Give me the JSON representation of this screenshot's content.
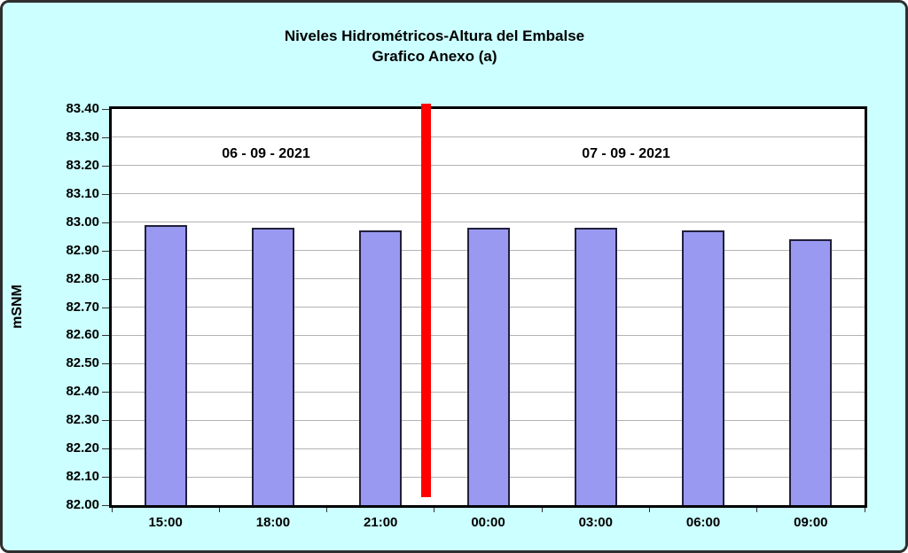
{
  "title": {
    "line1": "Niveles Hidrométricos-Altura del Embalse",
    "line2": "Grafico Anexo (a)"
  },
  "y_axis": {
    "title": "mSNM"
  },
  "annotations": {
    "left_date": "06 - 09 - 2021",
    "right_date": "07 - 09 - 2021"
  },
  "colors": {
    "background": "#CCFFFF",
    "plot_background": "#FFFFFF",
    "frame": "#000000",
    "gridline": "#B3B3B3",
    "bar_fill": "#9999F2",
    "bar_border": "#20203C",
    "divider": "#FF0000",
    "text": "#000000"
  },
  "chart_data": {
    "type": "bar",
    "title": "Niveles Hidrométricos-Altura del Embalse",
    "subtitle": "Grafico Anexo (a)",
    "categories": [
      "15:00",
      "18:00",
      "21:00",
      "00:00",
      "03:00",
      "06:00",
      "09:00"
    ],
    "values": [
      82.99,
      82.98,
      82.97,
      82.98,
      82.98,
      82.97,
      82.94
    ],
    "xlabel": "",
    "ylabel": "mSNM",
    "ylim": [
      82.0,
      83.4
    ],
    "ytick_step": 0.1,
    "ytick_decimals": 2,
    "grid": true,
    "legend": false,
    "annotations": [
      {
        "text": "06 - 09 - 2021",
        "applies_to_categories": [
          "15:00",
          "18:00",
          "21:00"
        ]
      },
      {
        "text": "07 - 09 - 2021",
        "applies_to_categories": [
          "00:00",
          "03:00",
          "06:00",
          "09:00"
        ]
      }
    ],
    "divider": {
      "after_category": "21:00",
      "color": "#FF0000"
    }
  }
}
